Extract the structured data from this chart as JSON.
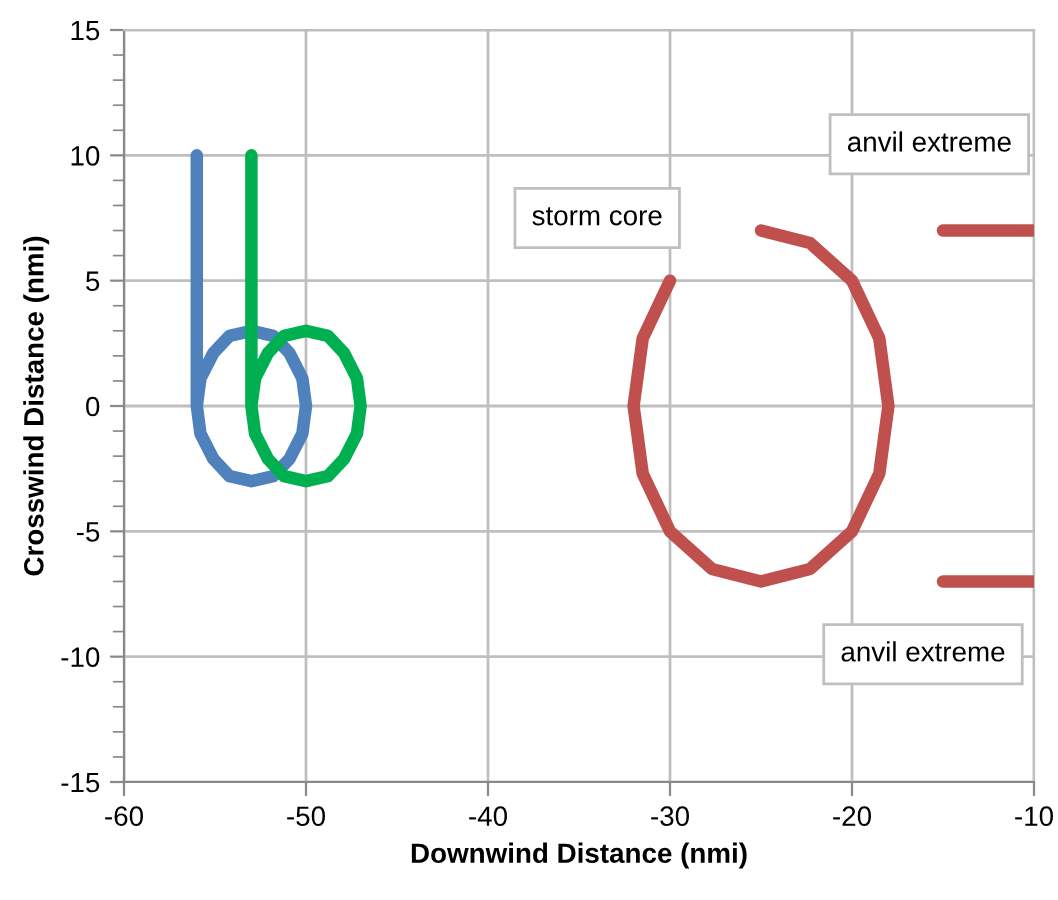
{
  "chart_data": {
    "type": "line",
    "xlabel": "Downwind Distance (nmi)",
    "ylabel": "Crosswind Distance (nmi)",
    "xlim": [
      -60,
      -10
    ],
    "xticks": [
      -60,
      -50,
      -40,
      -30,
      -20,
      -10
    ],
    "ylim": [
      -15,
      15
    ],
    "yticks": [
      -15,
      -10,
      -5,
      0,
      5,
      10,
      15
    ],
    "grid": true,
    "legend": false,
    "marker": "none",
    "line_style": "solid",
    "series": [
      {
        "color": "#4f81bd",
        "x": [
          -56,
          -56,
          -55.8,
          -55.1,
          -54.2,
          -53,
          -51.8,
          -50.9,
          -50.2,
          -50,
          -50.2,
          -50.9,
          -51.8,
          -53,
          -54.2,
          -55.1,
          -55.8,
          -56
        ],
        "values": [
          10,
          0,
          -1.1,
          -2.1,
          -2.8,
          -3,
          -2.8,
          -2.1,
          -1.1,
          0,
          1.1,
          2.1,
          2.8,
          3,
          2.8,
          2.1,
          1.1,
          0
        ]
      },
      {
        "color": "#00b050",
        "x": [
          -53,
          -53,
          -52.8,
          -52.1,
          -51.2,
          -50,
          -48.8,
          -47.9,
          -47.2,
          -47,
          -47.2,
          -47.9,
          -48.8,
          -50,
          -51.2,
          -52.1,
          -52.8,
          -53
        ],
        "values": [
          10,
          0,
          -1.1,
          -2.1,
          -2.8,
          -3,
          -2.8,
          -2.1,
          -1.1,
          0,
          1.1,
          2.1,
          2.8,
          3,
          2.8,
          2.1,
          1.1,
          0
        ]
      },
      {
        "color": "#c0504d",
        "x": [
          -25,
          -22.3,
          -20,
          -18.5,
          -18,
          -18.5,
          -20,
          -22.3,
          -25,
          -27.7,
          -30,
          -31.5,
          -32,
          -31.5,
          -30
        ],
        "values": [
          7,
          6.5,
          5,
          2.7,
          0,
          -2.7,
          -5,
          -6.5,
          -7,
          -6.5,
          -5,
          -2.7,
          0,
          2.7,
          5
        ]
      },
      {
        "color": "#c0504d",
        "x": [
          -15,
          -10
        ],
        "values": [
          7,
          7
        ]
      },
      {
        "color": "#c0504d",
        "x": [
          -15,
          -10
        ],
        "values": [
          -7,
          -7
        ]
      }
    ],
    "annotations": [
      "storm core",
      "anvil extreme",
      "anvil extreme"
    ]
  }
}
